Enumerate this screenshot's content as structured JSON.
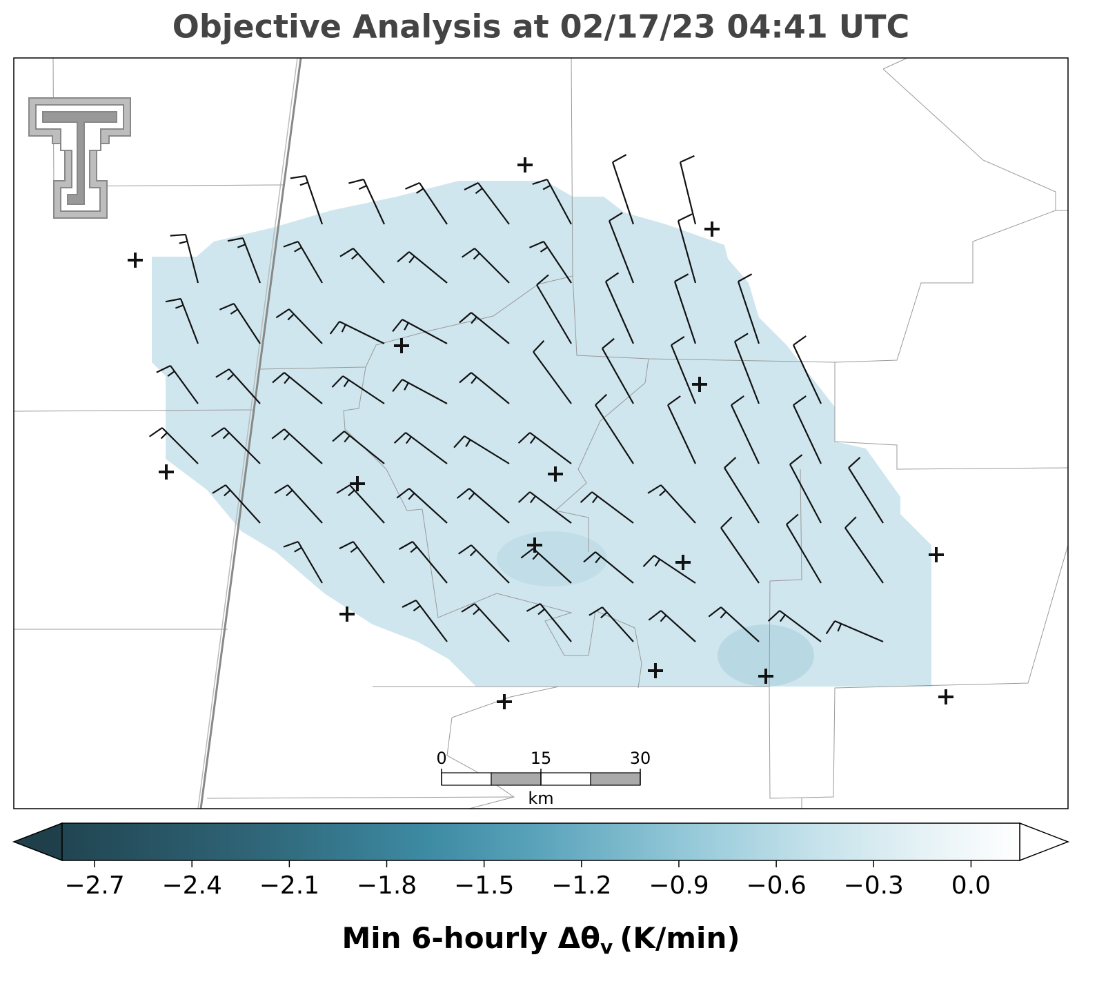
{
  "title": "Objective Analysis at 02/17/23 04:41 UTC",
  "colorbar": {
    "label": "Min 6-hourly Δθ",
    "label_sub": "v",
    "label_unit": "(K/min)",
    "lim": [
      -2.8,
      0.15
    ],
    "ticks": [
      {
        "value": -2.7,
        "label": "−2.7"
      },
      {
        "value": -2.4,
        "label": "−2.4"
      },
      {
        "value": -2.1,
        "label": "−2.1"
      },
      {
        "value": -1.8,
        "label": "−1.8"
      },
      {
        "value": -1.5,
        "label": "−1.5"
      },
      {
        "value": -1.2,
        "label": "−1.2"
      },
      {
        "value": -0.9,
        "label": "−0.9"
      },
      {
        "value": -0.6,
        "label": "−0.6"
      },
      {
        "value": -0.3,
        "label": "−0.3"
      },
      {
        "value": 0,
        "label": "0.0"
      }
    ]
  },
  "scale_bar": {
    "ticks": [
      0,
      15,
      30
    ],
    "lim": [
      0,
      30
    ],
    "unit": "km"
  }
}
